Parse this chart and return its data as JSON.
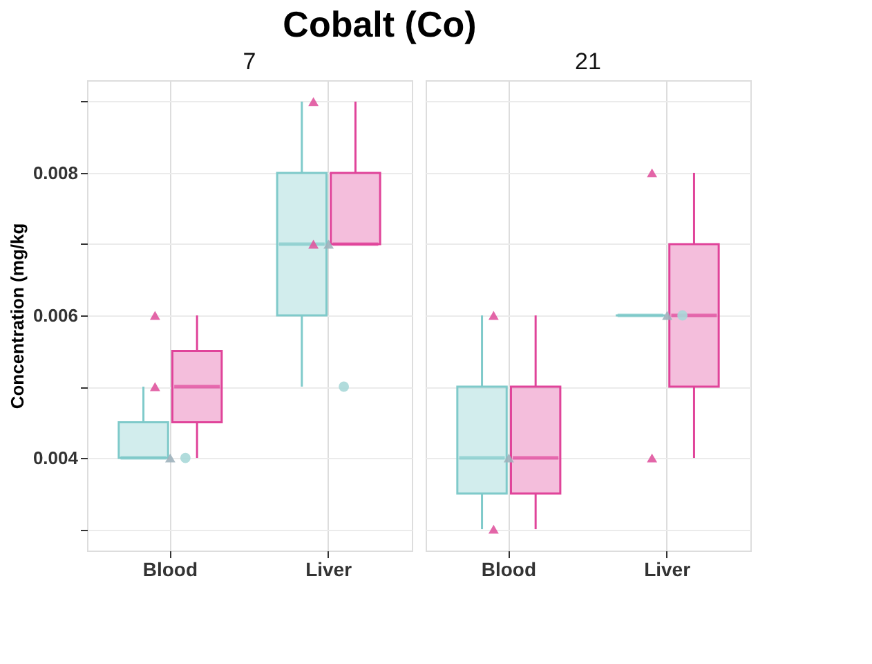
{
  "chart_data": [
    {
      "type": "box",
      "title": "Cobalt (Co)",
      "subtitle": "7",
      "ylabel": "Concentration (mg/kg",
      "categories": [
        "Blood",
        "Liver"
      ],
      "ylim": [
        0.0027,
        0.0093
      ],
      "yticks": [
        {
          "value": 0.003,
          "label": null
        },
        0.004,
        {
          "value": 0.005,
          "label": null
        },
        0.006,
        {
          "value": 0.007,
          "label": null
        },
        0.008,
        {
          "value": 0.009,
          "label": null
        }
      ],
      "grid": true,
      "series": [
        {
          "color": "#7fcaca",
          "boxes": [
            {
              "low": 0.004,
              "q1": 0.004,
              "median": 0.004,
              "q3": 0.0045,
              "high": 0.005
            },
            {
              "low": 0.005,
              "q1": 0.006,
              "median": 0.007,
              "q3": 0.008,
              "high": 0.009
            }
          ]
        },
        {
          "color": "#e0449a",
          "boxes": [
            {
              "low": 0.004,
              "q1": 0.0045,
              "median": 0.005,
              "q3": 0.0055,
              "high": 0.006
            },
            {
              "low": 0.007,
              "q1": 0.007,
              "median": 0.007,
              "q3": 0.008,
              "high": 0.009
            }
          ]
        },
        {
          "type": "scatter",
          "marker": "triangle",
          "color": "#e0559f",
          "x": [
            "Blood",
            "Blood",
            "Liver",
            "Liver"
          ],
          "values": [
            0.006,
            0.005,
            0.009,
            0.007
          ]
        },
        {
          "type": "scatter",
          "marker": "triangle",
          "color": "#9fb3bd",
          "x": [
            "Blood",
            "Liver"
          ],
          "values": [
            0.004,
            0.007
          ]
        },
        {
          "type": "scatter",
          "marker": "circle",
          "color": "#a8d8d8",
          "x": [
            "Blood",
            "Liver"
          ],
          "values": [
            0.004,
            0.005
          ]
        }
      ]
    },
    {
      "type": "box",
      "subtitle": "21",
      "categories": [
        "Blood",
        "Liver"
      ],
      "ylim": [
        0.0027,
        0.0093
      ],
      "yticks": [
        {
          "value": 0.003,
          "label": null
        },
        0.004,
        {
          "value": 0.005,
          "label": null
        },
        0.006,
        {
          "value": 0.007,
          "label": null
        },
        0.008,
        {
          "value": 0.009,
          "label": null
        }
      ],
      "grid": true,
      "tick_labels": "x",
      "series": [
        {
          "color": "#7fcaca",
          "boxes": [
            {
              "low": 0.003,
              "q1": 0.0035,
              "median": 0.004,
              "q3": 0.005,
              "high": 0.006
            },
            {
              "low": 0.006,
              "q1": 0.006,
              "median": 0.006,
              "q3": 0.006,
              "high": 0.006
            }
          ]
        },
        {
          "color": "#e0449a",
          "boxes": [
            {
              "low": 0.003,
              "q1": 0.0035,
              "median": 0.004,
              "q3": 0.005,
              "high": 0.006
            },
            {
              "low": 0.004,
              "q1": 0.005,
              "median": 0.006,
              "q3": 0.007,
              "high": 0.008
            }
          ]
        },
        {
          "type": "scatter",
          "marker": "triangle",
          "color": "#e0559f",
          "x": [
            "Blood",
            "Blood",
            "Liver",
            "Liver"
          ],
          "values": [
            0.006,
            0.003,
            0.008,
            0.004
          ]
        },
        {
          "type": "scatter",
          "marker": "triangle",
          "color": "#9fb3bd",
          "x": [
            "Blood",
            "Liver"
          ],
          "values": [
            0.004,
            0.006
          ]
        },
        {
          "type": "scatter",
          "marker": "circle",
          "color": "#a8d8d8",
          "x": [
            "Liver"
          ],
          "values": [
            0.006
          ]
        }
      ]
    }
  ]
}
